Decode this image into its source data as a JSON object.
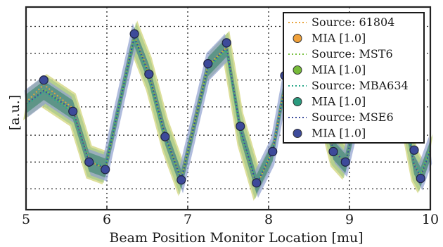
{
  "chart_data": {
    "type": "line",
    "title": "",
    "xlabel": "Beam Position Monitor Location [mu]",
    "ylabel": "[a.u.]",
    "xlim": [
      5,
      10
    ],
    "ylim": [
      -3.3,
      3.5
    ],
    "x_ticks": [
      5,
      6,
      7,
      8,
      9,
      10
    ],
    "x_tick_labels": [
      "5",
      "6",
      "7",
      "8",
      "9",
      "10"
    ],
    "grid": true,
    "legend_position": "top-right",
    "x": [
      5.0,
      5.22,
      5.58,
      5.78,
      5.98,
      6.34,
      6.52,
      6.72,
      6.92,
      7.25,
      7.48,
      7.65,
      7.85,
      8.05,
      8.2,
      8.5,
      8.8,
      8.95,
      9.2,
      9.5,
      9.8,
      9.88,
      10.0
    ],
    "series": [
      {
        "name": "Source: 61804",
        "kind": "line",
        "color": "#e8a33b",
        "values": [
          0.3,
          0.9,
          0.1,
          -1.65,
          -1.95,
          2.55,
          1.3,
          -0.8,
          -2.25,
          1.55,
          2.15,
          -0.65,
          -2.5,
          -1.3,
          0.9,
          2.0,
          -1.3,
          -1.75,
          1.2,
          2.5,
          -1.75,
          -2.2,
          -1.3
        ]
      },
      {
        "name": "Source: MST6",
        "kind": "line",
        "color": "#7ac143",
        "values": [
          0.25,
          0.75,
          0.0,
          -1.7,
          -1.9,
          2.5,
          1.2,
          -0.85,
          -2.3,
          1.5,
          2.1,
          -0.7,
          -2.45,
          -1.35,
          0.85,
          1.95,
          -1.35,
          -1.7,
          1.15,
          2.45,
          -1.8,
          -2.15,
          -1.25
        ]
      },
      {
        "name": "Source: MBA634",
        "kind": "line",
        "color": "#2ba88a",
        "values": [
          0.2,
          0.65,
          -0.05,
          -1.65,
          -1.85,
          2.45,
          1.15,
          -0.9,
          -2.25,
          1.45,
          2.05,
          -0.65,
          -2.4,
          -1.3,
          0.8,
          1.9,
          -1.3,
          -1.7,
          1.1,
          2.4,
          -1.75,
          -2.1,
          -1.3
        ]
      },
      {
        "name": "Source: MSE6",
        "kind": "line",
        "color": "#3a4a9a",
        "values": [
          0.25,
          0.7,
          0.05,
          -1.7,
          -1.9,
          2.5,
          1.25,
          -0.8,
          -2.3,
          1.5,
          2.15,
          -0.6,
          -2.45,
          -1.35,
          0.85,
          1.95,
          -1.3,
          -1.75,
          1.15,
          2.45,
          -1.8,
          -2.2,
          -1.3
        ]
      }
    ],
    "mia_points": {
      "x": [
        5.22,
        5.58,
        5.78,
        5.98,
        6.34,
        6.52,
        6.72,
        6.92,
        7.25,
        7.48,
        7.65,
        7.85,
        8.05,
        8.2,
        8.5,
        8.8,
        8.95,
        9.2,
        9.5,
        9.8,
        9.88
      ],
      "y": [
        1.05,
        0.0,
        -1.7,
        -1.95,
        2.6,
        1.25,
        -0.85,
        -2.3,
        1.6,
        2.3,
        -0.5,
        -2.4,
        -1.35,
        1.2,
        2.4,
        -1.35,
        -1.7,
        1.2,
        2.5,
        -1.3,
        -2.25
      ]
    },
    "legend": [
      {
        "label": "Source: 61804",
        "kind": "line",
        "color": "#e8a33b"
      },
      {
        "label": "MIA [1.0]",
        "kind": "marker",
        "color": "#f0a13a"
      },
      {
        "label": "Source: MST6",
        "kind": "line",
        "color": "#7ac143"
      },
      {
        "label": "MIA [1.0]",
        "kind": "marker",
        "color": "#77bb3a"
      },
      {
        "label": "Source: MBA634",
        "kind": "line",
        "color": "#2ba88a"
      },
      {
        "label": "MIA [1.0]",
        "kind": "marker",
        "color": "#2a9a7e"
      },
      {
        "label": "Source: MSE6",
        "kind": "line",
        "color": "#3a4a9a"
      },
      {
        "label": "MIA [1.0]",
        "kind": "marker",
        "color": "#3d4a9a"
      }
    ],
    "colors": {
      "band_yellow": "#d7d98a",
      "band_green": "#a7c98a",
      "band_blue": "#8f9fcf",
      "band_teal": "#4f8f7a",
      "marker_fill": "#3d4a9a",
      "grid": "#222222"
    }
  }
}
